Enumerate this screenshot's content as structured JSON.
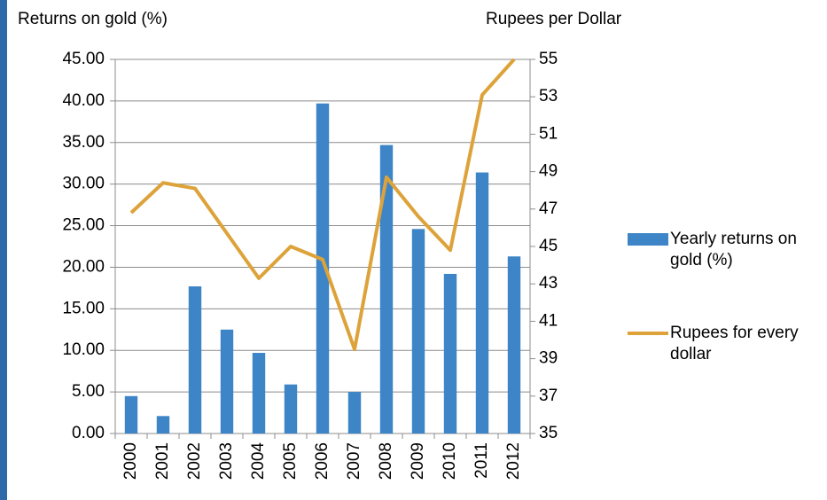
{
  "chart_data": {
    "type": "bar_line",
    "y_label": "Returns on gold (%)",
    "y2_label": "Rupees per Dollar",
    "categories": [
      "2000",
      "2001",
      "2002",
      "2003",
      "2004",
      "2005",
      "2006",
      "2007",
      "2008",
      "2009",
      "2010",
      "2011",
      "2012"
    ],
    "series": [
      {
        "name": "Yearly returns on gold (%)",
        "type": "bar",
        "color": "#3d85c6",
        "values": [
          4.5,
          2.1,
          17.7,
          12.5,
          9.7,
          5.9,
          39.7,
          5.0,
          34.7,
          24.6,
          19.2,
          31.4,
          21.3
        ]
      },
      {
        "name": "Rupees for every dollar",
        "type": "line",
        "axis": "y2",
        "color": "#dda33a",
        "values": [
          46.8,
          48.4,
          48.1,
          45.7,
          43.3,
          45.0,
          44.3,
          39.5,
          48.7,
          46.6,
          44.8,
          53.1,
          55.0
        ]
      }
    ],
    "ylim": [
      0,
      45
    ],
    "yticks": [
      {
        "value": 0,
        "label": "0.00"
      },
      {
        "value": 5,
        "label": "5.00"
      },
      {
        "value": 10,
        "label": "10.00"
      },
      {
        "value": 15,
        "label": "15.00"
      },
      {
        "value": 20,
        "label": "20.00"
      },
      {
        "value": 25,
        "label": "25.00"
      },
      {
        "value": 30,
        "label": "30.00"
      },
      {
        "value": 35,
        "label": "35.00"
      },
      {
        "value": 40,
        "label": "40.00"
      },
      {
        "value": 45,
        "label": "45.00"
      }
    ],
    "y2lim": [
      35,
      55
    ],
    "y2ticks": [
      35,
      37,
      39,
      41,
      43,
      45,
      47,
      49,
      51,
      53,
      55
    ],
    "grid": true,
    "legend": "right"
  }
}
